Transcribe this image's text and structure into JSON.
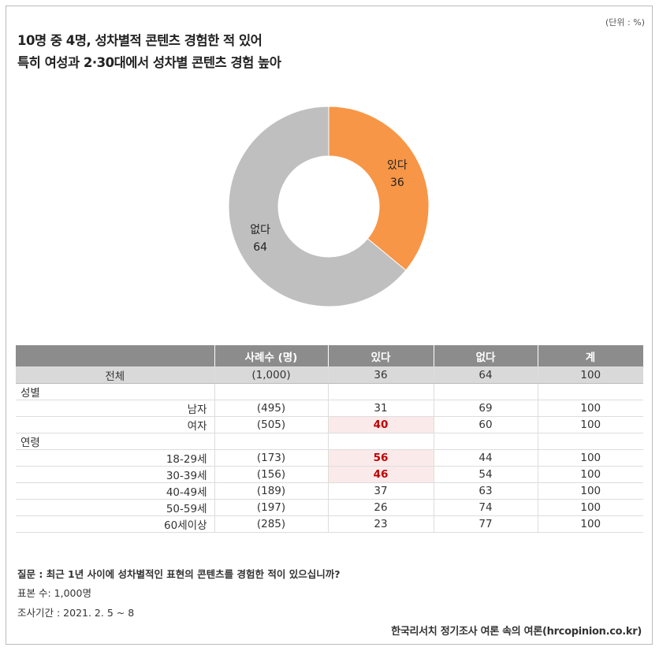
{
  "unit": "(단위 : %)",
  "chart_data": {
    "type": "pie",
    "donut": true,
    "title": [
      "10명 중 4명, 성차별적 콘텐츠 경험한 적 있어",
      "특히 여성과 2·30대에서 성차별 콘텐츠 경험 높아"
    ],
    "categories": [
      "있다",
      "없다"
    ],
    "values": [
      36,
      64
    ],
    "colors": [
      "#f79646",
      "#bfbfbf"
    ]
  },
  "table": {
    "header": [
      "사례수 (명)",
      "있다",
      "없다",
      "계"
    ],
    "rows": [
      [
        "전체",
        "(1,000)",
        "36",
        "64",
        "100"
      ],
      [
        "성별"
      ],
      [
        "남자",
        "(495)",
        "31",
        "69",
        "100"
      ],
      [
        "여자",
        "(505)",
        "40",
        "60",
        "100"
      ],
      [
        "연령"
      ],
      [
        "18-29세",
        "(173)",
        "56",
        "44",
        "100"
      ],
      [
        "30-39세",
        "(156)",
        "46",
        "54",
        "100"
      ],
      [
        "40-49세",
        "(189)",
        "37",
        "63",
        "100"
      ],
      [
        "50-59세",
        "(197)",
        "26",
        "74",
        "100"
      ],
      [
        "60세이상",
        "(285)",
        "23",
        "77",
        "100"
      ]
    ]
  },
  "notes": [
    "질문 : 최근 1년 사이에 성차별적인 표현의 콘텐츠를 경험한 적이 있으십니까?",
    "표본 수: 1,000명",
    "조사기간 : 2021. 2. 5 ~ 8"
  ],
  "source": "한국리서치 정기조사 여론 속의 여론(hrcopinion.co.kr)"
}
